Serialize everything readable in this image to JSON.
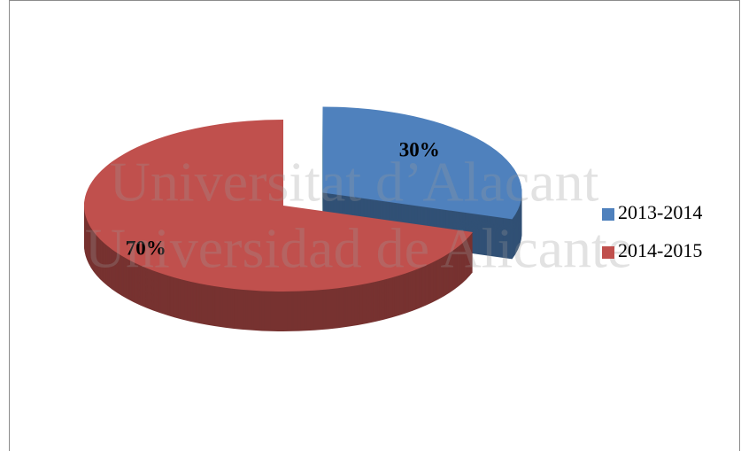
{
  "chart_data": {
    "type": "pie",
    "categories": [
      "2013-2014",
      "2014-2015"
    ],
    "values": [
      30,
      70
    ],
    "value_labels": [
      "30%",
      "70%"
    ],
    "colors": [
      "#4f81bd",
      "#c0504d"
    ],
    "exploded": [
      true,
      false
    ],
    "legend": "right"
  },
  "watermark": [
    "Universitat d’Alacant",
    "Universidad de Alicante"
  ]
}
